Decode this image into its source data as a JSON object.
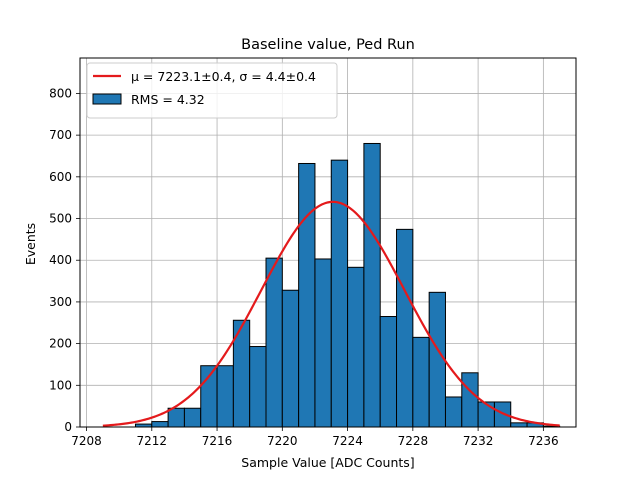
{
  "chart_data": {
    "type": "bar",
    "title": "Baseline value, Ped Run",
    "xlabel": "Sample Value [ADC Counts]",
    "ylabel": "Events",
    "xlim": [
      7207.6,
      7238.0
    ],
    "ylim": [
      0,
      885
    ],
    "xticks": [
      7208,
      7212,
      7216,
      7220,
      7224,
      7228,
      7232,
      7236
    ],
    "yticks": [
      0,
      100,
      200,
      300,
      400,
      500,
      600,
      700,
      800
    ],
    "grid": true,
    "legend_position": "top-left",
    "histogram": {
      "name": "RMS = 4.32",
      "color": "#1f77b4",
      "edge_color": "#000000",
      "bin_edges": [
        7209.0,
        7210.0,
        7211.0,
        7212.0,
        7213.0,
        7214.0,
        7215.0,
        7216.0,
        7217.0,
        7218.0,
        7219.0,
        7220.0,
        7221.0,
        7222.0,
        7223.0,
        7224.0,
        7225.0,
        7226.0,
        7227.0,
        7228.0,
        7229.0,
        7230.0,
        7231.0,
        7232.0,
        7233.0,
        7234.0,
        7235.0,
        7236.0,
        7237.0
      ],
      "counts": [
        0,
        0,
        7,
        13,
        45,
        45,
        147,
        147,
        256,
        193,
        405,
        328,
        632,
        403,
        640,
        383,
        680,
        265,
        474,
        215,
        323,
        72,
        130,
        60,
        60,
        10,
        10,
        2
      ]
    },
    "fit": {
      "name": "μ = 7223.1±0.4, σ = 4.4±0.4",
      "mu": 7223.1,
      "sigma": 4.4,
      "amplitude": 540,
      "x_range": [
        7209.0,
        7237.0
      ],
      "color": "#e41a1c"
    }
  }
}
